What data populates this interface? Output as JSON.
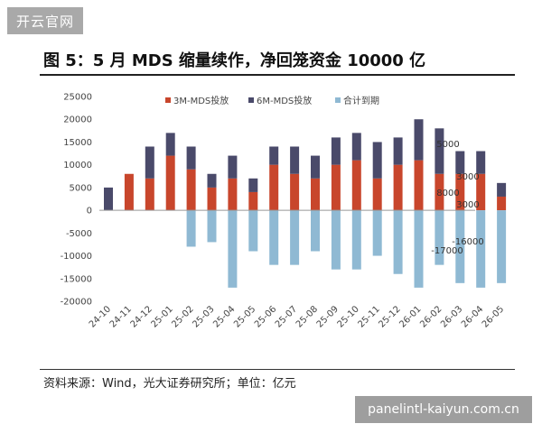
{
  "watermark_top": "开云官网",
  "title": "图 5：5 月 MDS 缩量续作，净回笼资金 10000 亿",
  "source": "资料来源：Wind，光大证券研究所；单位：亿元",
  "watermark_bottom": "panelintl-kaiyun.com.cn",
  "colors": {
    "m3": "#c8462c",
    "m6": "#4a4a6a",
    "total": "#8fb9d3",
    "axis": "#999999"
  },
  "chart_data": {
    "type": "bar",
    "stacked": true,
    "categories": [
      "24-10",
      "24-11",
      "24-12",
      "25-01",
      "25-02",
      "25-03",
      "25-04",
      "25-05",
      "25-06",
      "25-07",
      "25-08",
      "25-09",
      "25-10",
      "25-11",
      "25-12",
      "26-01",
      "26-02",
      "26-03",
      "26-04",
      "26-05"
    ],
    "series": [
      {
        "name": "3M-MDS投放",
        "values": [
          0,
          8000,
          7000,
          12000,
          9000,
          5000,
          7000,
          4000,
          10000,
          8000,
          7000,
          10000,
          11000,
          7000,
          10000,
          11000,
          8000,
          8000,
          8000,
          3000
        ]
      },
      {
        "name": "6M-MDS投放",
        "values": [
          5000,
          0,
          7000,
          5000,
          5000,
          3000,
          5000,
          3000,
          4000,
          6000,
          5000,
          6000,
          6000,
          8000,
          6000,
          9000,
          10000,
          5000,
          5000,
          3000
        ]
      },
      {
        "name": "合计到期",
        "values": [
          0,
          0,
          0,
          0,
          -8000,
          -7000,
          -17000,
          -9000,
          -12000,
          -12000,
          -9000,
          -13000,
          -13000,
          -10000,
          -14000,
          -17000,
          -12000,
          -16000,
          -17000,
          -16000
        ]
      }
    ],
    "ylim": [
      -20000,
      25000
    ],
    "yticks": [
      "25000",
      "20000",
      "15000",
      "10000",
      "5000",
      "0",
      "-5000",
      "-10000",
      "-15000",
      "-20000"
    ],
    "annotations": [
      "5000",
      "8000",
      "3000",
      "3000",
      "-17000",
      "-16000"
    ],
    "legend_position": "top"
  }
}
